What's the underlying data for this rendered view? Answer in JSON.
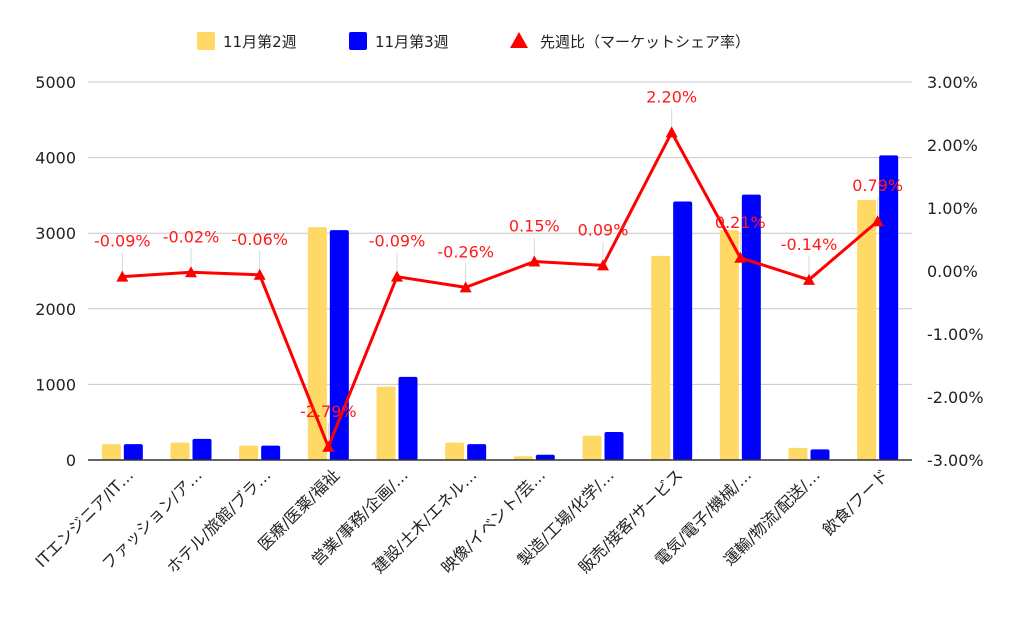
{
  "chart_data": {
    "type": "bar",
    "categories": [
      "ITエンジニア/IT…",
      "ファッション/ア…",
      "ホテル/旅館/ブラ…",
      "医療/医薬/福祉",
      "営業/事務/企画/…",
      "建設/土木/エネル…",
      "映像/イベント/芸…",
      "製造/工場/化学/…",
      "販売/接客/サービス",
      "電気/電子/機械/…",
      "運輸/物流/配送/…",
      "飲食/フード"
    ],
    "series": [
      {
        "name": "11月第2週",
        "color": "#ffd966",
        "values": [
          210,
          230,
          190,
          3080,
          970,
          230,
          50,
          320,
          2700,
          3040,
          160,
          3440
        ]
      },
      {
        "name": "11月第3週",
        "color": "#0000ff",
        "values": [
          210,
          280,
          190,
          3040,
          1100,
          210,
          70,
          370,
          3420,
          3510,
          140,
          4030
        ]
      }
    ],
    "line": {
      "name": "先週比（マーケットシェア率）",
      "color": "#ff0000",
      "values": [
        -0.09,
        -0.02,
        -0.06,
        -2.79,
        -0.09,
        -0.26,
        0.15,
        0.09,
        2.2,
        0.21,
        -0.14,
        0.79
      ],
      "labels": [
        "-0.09%",
        "-0.02%",
        "-0.06%",
        "-2.79%",
        "-0.09%",
        "-0.26%",
        "0.15%",
        "0.09%",
        "2.20%",
        "0.21%",
        "-0.14%",
        "0.79%"
      ]
    },
    "y_left": {
      "min": 0,
      "max": 5000,
      "ticks": [
        "0",
        "1000",
        "2000",
        "3000",
        "4000",
        "5000"
      ]
    },
    "y_right": {
      "min": -3,
      "max": 3,
      "ticks": [
        "-3.00%",
        "-2.00%",
        "-1.00%",
        "0.00%",
        "1.00%",
        "2.00%",
        "3.00%"
      ]
    },
    "grid": true,
    "legend_position": "top"
  }
}
